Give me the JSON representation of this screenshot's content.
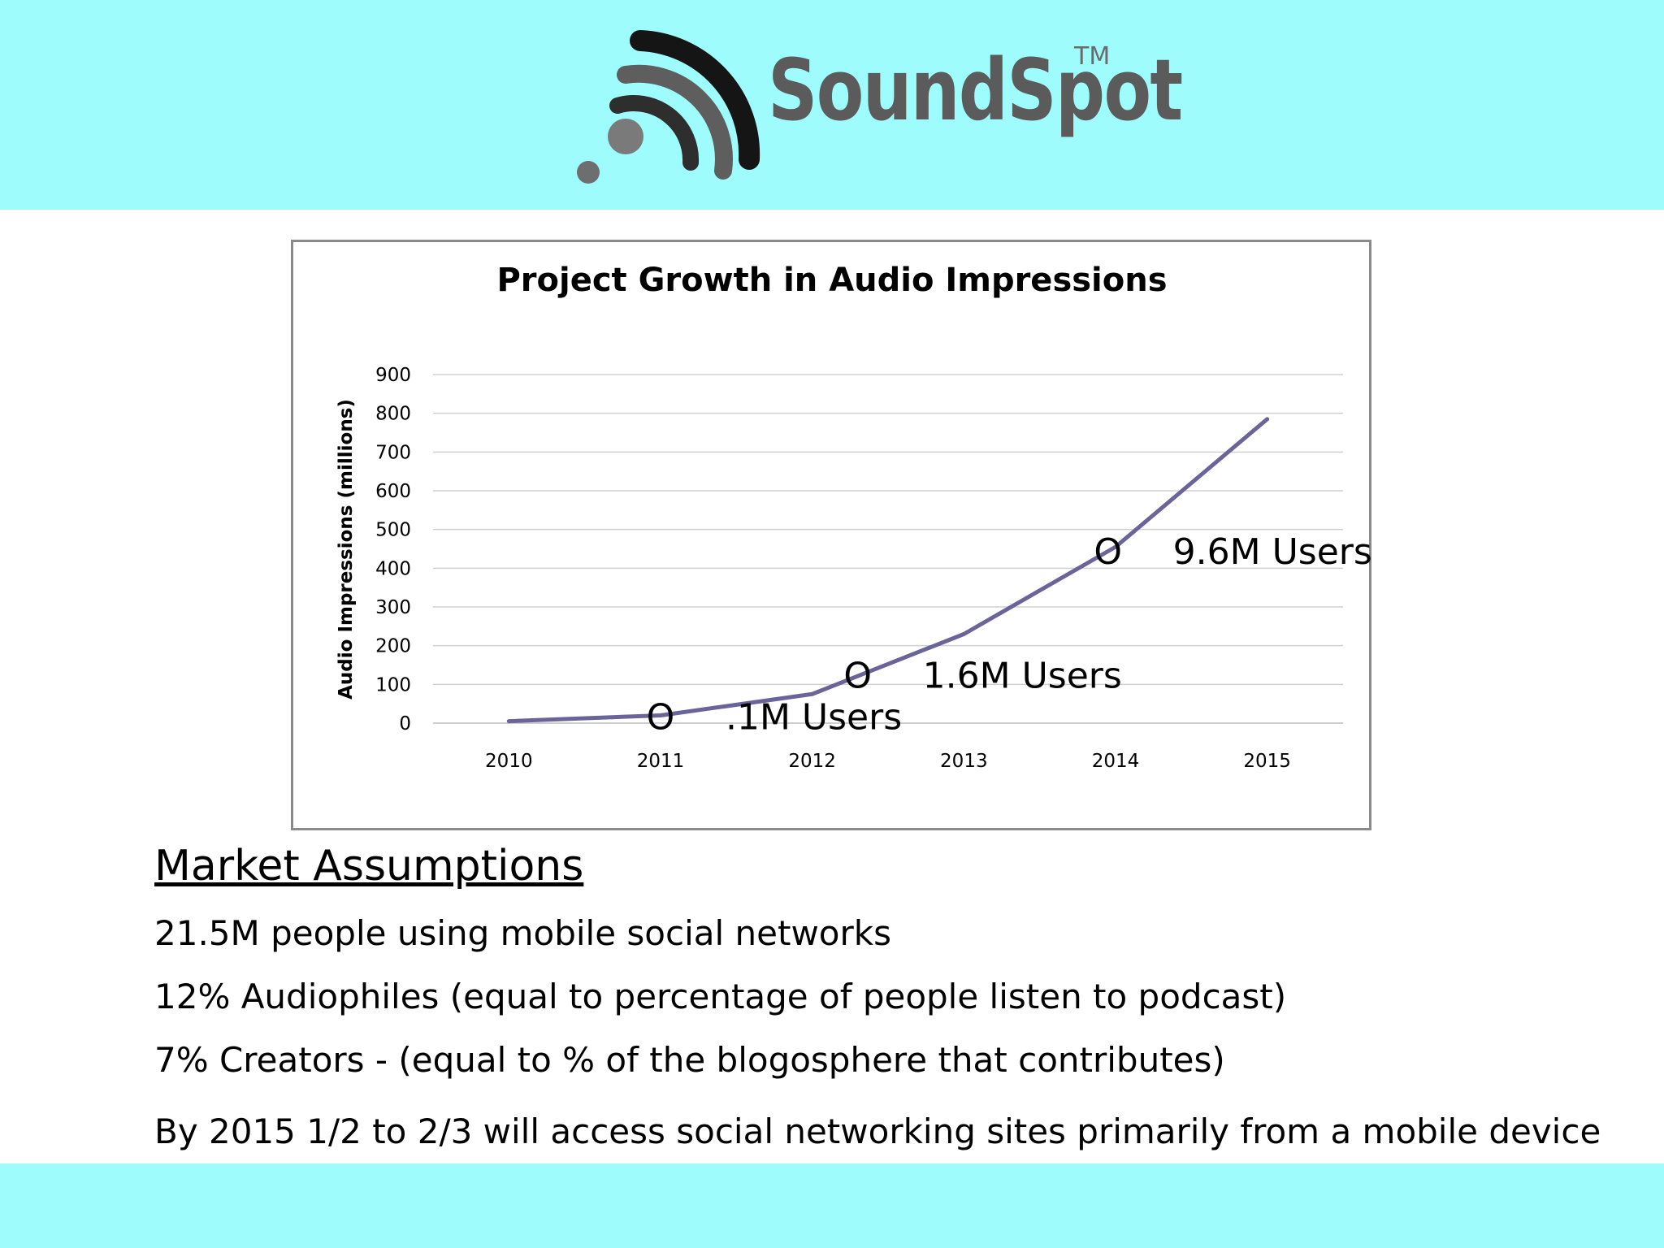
{
  "brand": {
    "name": "SoundSpot",
    "tm": "TM"
  },
  "chart_data": {
    "type": "line",
    "title": "Project Growth in Audio Impressions",
    "xlabel": "",
    "ylabel": "Audio Impressions (millions)",
    "categories": [
      "2010",
      "2011",
      "2012",
      "2013",
      "2014",
      "2015"
    ],
    "values": [
      5,
      20,
      75,
      230,
      455,
      785
    ],
    "ylim": [
      0,
      900
    ],
    "yticks": [
      0,
      100,
      200,
      300,
      400,
      500,
      600,
      700,
      800,
      900
    ],
    "grid": true,
    "line_color": "#6b649a",
    "annotations": [
      {
        "marker": "O",
        "x": 2011.0,
        "y": 18,
        "text": ".1M Users"
      },
      {
        "marker": "O",
        "x": 2012.3,
        "y": 125,
        "text": "1.6M Users"
      },
      {
        "marker": "O",
        "x": 2013.95,
        "y": 445,
        "text": "9.6M Users"
      }
    ]
  },
  "market": {
    "title": "Market Assumptions",
    "points": [
      "21.5M people using mobile social networks",
      "12% Audiophiles (equal to percentage of people listen to podcast)",
      "7% Creators - (equal to % of the blogosphere that contributes)",
      "By 2015 1/2 to 2/3 will access social networking sites primarily from a mobile device"
    ]
  }
}
